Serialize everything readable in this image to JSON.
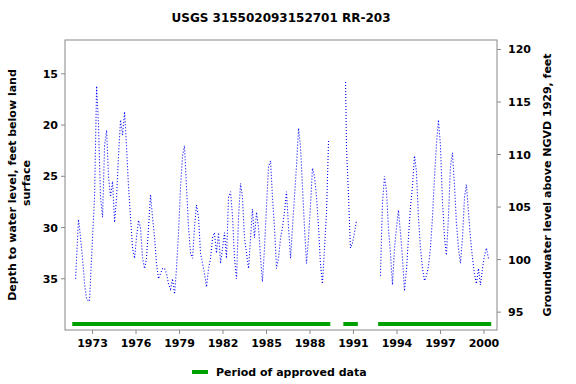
{
  "chart_data": {
    "type": "line",
    "title": "USGS 315502093152701 RR-203",
    "ylabel": "Depth to water level, feet below land surface",
    "y2label": "Groundwater level above NGVD 1929, feet",
    "xlim": [
      1971.1,
      2000.9
    ],
    "xticks": [
      1973,
      1976,
      1979,
      1982,
      1985,
      1988,
      1991,
      1994,
      1997,
      2000
    ],
    "ylim": [
      40.0,
      11.7
    ],
    "yticks": [
      15,
      20,
      25,
      30,
      35
    ],
    "y2lim": [
      93.3,
      120.9
    ],
    "y2ticks": [
      95,
      100,
      105,
      110,
      115,
      120
    ],
    "grid": false,
    "x": [
      1971.83,
      1972.03,
      1972.1,
      1972.31,
      1972.45,
      1972.59,
      1972.79,
      1972.93,
      1973.14,
      1973.28,
      1973.41,
      1973.55,
      1973.69,
      1973.83,
      1973.97,
      1974.1,
      1974.24,
      1974.38,
      1974.52,
      1974.66,
      1974.79,
      1974.93,
      1975.07,
      1975.21,
      1975.34,
      1975.48,
      1975.62,
      1975.76,
      1975.9,
      1976.03,
      1976.17,
      1976.31,
      1976.45,
      1976.59,
      1976.72,
      1976.86,
      1977.0,
      1977.14,
      1977.28,
      1977.41,
      1977.55,
      1977.69,
      1977.83,
      1977.97,
      1978.1,
      1978.24,
      1978.38,
      1978.52,
      1978.66,
      1978.79,
      1978.93,
      1979.07,
      1979.21,
      1979.34,
      1979.48,
      1979.62,
      1979.76,
      1979.9,
      1980.03,
      1980.17,
      1980.31,
      1980.45,
      1980.59,
      1980.72,
      1980.86,
      1981.0,
      1981.14,
      1981.28,
      1981.41,
      1981.55,
      1981.69,
      1981.83,
      1981.97,
      1982.1,
      1982.24,
      1982.38,
      1982.52,
      1982.66,
      1982.79,
      1982.93,
      1983.07,
      1983.21,
      1983.34,
      1983.48,
      1983.62,
      1983.76,
      1983.9,
      1984.03,
      1984.17,
      1984.31,
      1984.45,
      1984.59,
      1984.72,
      1984.86,
      1985.0,
      1985.14,
      1985.28,
      1985.41,
      1985.55,
      1985.69,
      1985.83,
      1985.97,
      1986.1,
      1986.24,
      1986.38,
      1986.52,
      1986.66,
      1986.79,
      1986.93,
      1987.07,
      1987.21,
      1987.34,
      1987.48,
      1987.62,
      1987.76,
      1987.9,
      1988.03,
      1988.17,
      1988.31,
      1988.45,
      1988.59,
      1988.72,
      1988.86,
      1989.0,
      1989.14,
      1989.28,
      1989.85,
      1990.45,
      1990.52,
      1990.66,
      1990.79,
      1990.93,
      1991.07,
      1991.21,
      1992.0,
      1992.86,
      1993.0,
      1993.14,
      1993.28,
      1993.41,
      1993.55,
      1993.69,
      1993.83,
      1993.97,
      1994.1,
      1994.24,
      1994.38,
      1994.52,
      1994.66,
      1994.79,
      1994.93,
      1995.07,
      1995.21,
      1995.34,
      1995.48,
      1995.62,
      1995.76,
      1995.9,
      1996.03,
      1996.17,
      1996.31,
      1996.45,
      1996.59,
      1996.72,
      1996.86,
      1997.0,
      1997.14,
      1997.28,
      1997.41,
      1997.55,
      1997.69,
      1997.83,
      1997.97,
      1998.1,
      1998.24,
      1998.38,
      1998.52,
      1998.66,
      1998.79,
      1998.93,
      1999.07,
      1999.21,
      1999.34,
      1999.48,
      1999.62,
      1999.76,
      1999.9,
      2000.03,
      2000.17,
      2000.31
    ],
    "series": [
      {
        "color": "#0000ff",
        "line_style": "dotted",
        "values": [
          35,
          29.2,
          30,
          33,
          35.5,
          37,
          37.2,
          33,
          27,
          16.2,
          20,
          27,
          29,
          22,
          20.5,
          25,
          27,
          25.5,
          29.5,
          27,
          23,
          19.5,
          21,
          18.7,
          22,
          26,
          29,
          32,
          33,
          31,
          29.3,
          30,
          33,
          34,
          33,
          30,
          26.8,
          29,
          31,
          33.5,
          35,
          34.5,
          34,
          34,
          34.5,
          35.5,
          36,
          35,
          36.5,
          34,
          30.5,
          26,
          23,
          22,
          26,
          30,
          32.5,
          33,
          30,
          27.8,
          29,
          32.5,
          33.5,
          34.5,
          35.8,
          34,
          33,
          31,
          30.5,
          32.5,
          30.5,
          33.5,
          32,
          30.5,
          33,
          27,
          26.5,
          29,
          33,
          35,
          29,
          25.7,
          27,
          31,
          32.5,
          34,
          31,
          28.2,
          31,
          28.5,
          30,
          33,
          35.3,
          32,
          28,
          24,
          23.5,
          27,
          30,
          34,
          33,
          31,
          30,
          28.5,
          26.5,
          30,
          33,
          30,
          27,
          24,
          20.3,
          22,
          26,
          30,
          33.5,
          31,
          28,
          24.2,
          25,
          27,
          30,
          33.5,
          35.5,
          32,
          28.5,
          21.5,
          null,
          15.8,
          22.3,
          27,
          32,
          31.5,
          30.5,
          29.3,
          null,
          34.7,
          27.6,
          25,
          26.5,
          30,
          32.5,
          35.6,
          32,
          30,
          28.3,
          30.5,
          33,
          36.2,
          34,
          31,
          28,
          26,
          23,
          24.5,
          29,
          32,
          34,
          35.2,
          34.7,
          33.8,
          32,
          29,
          25,
          22,
          19.5,
          22,
          27.5,
          31,
          32.7,
          29,
          24,
          22.7,
          26,
          29.5,
          32,
          33.5,
          31,
          27,
          25.8,
          28.5,
          31,
          33,
          34.5,
          35.5,
          34,
          35.6,
          34,
          32.8,
          32,
          33
        ]
      }
    ],
    "approved": {
      "name": "Period of approved data",
      "color": "#00a000",
      "periods": [
        [
          1971.6,
          1989.4
        ],
        [
          1990.3,
          1991.3
        ],
        [
          1992.7,
          2000.5
        ]
      ]
    }
  }
}
